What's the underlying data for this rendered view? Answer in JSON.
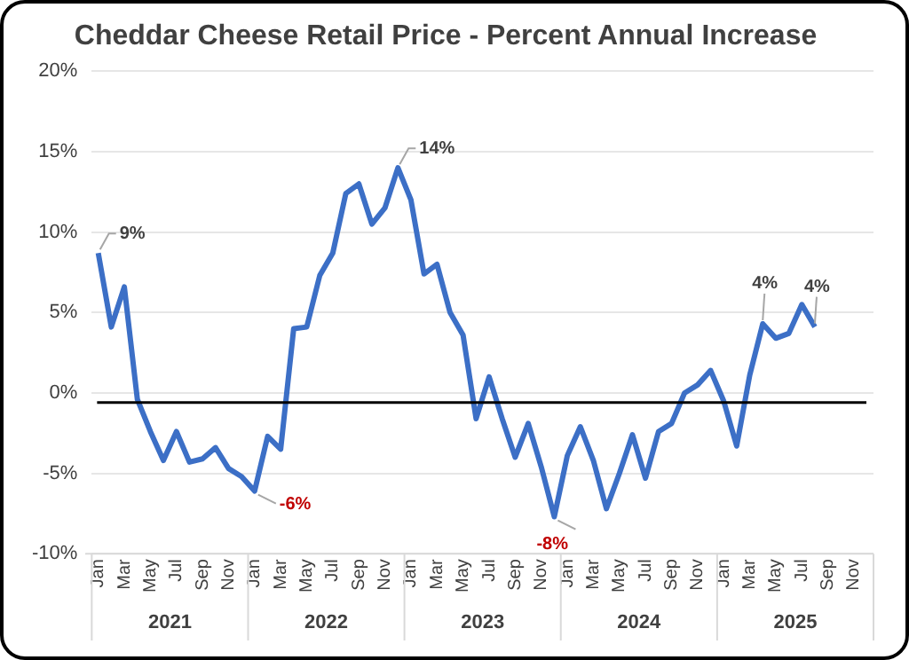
{
  "chart_data": {
    "type": "line",
    "title": "Cheddar Cheese Retail Price - Percent Annual Increase",
    "categories": [
      "Jan",
      null,
      "Mar",
      null,
      "May",
      null,
      "Jul",
      null,
      "Sep",
      null,
      "Nov",
      null,
      "Jan",
      null,
      "Mar",
      null,
      "May",
      null,
      "Jul",
      null,
      "Sep",
      null,
      "Nov",
      null,
      "Jan",
      null,
      "Mar",
      null,
      "May",
      null,
      "Jul",
      null,
      "Sep",
      null,
      "Nov",
      null,
      "Jan",
      null,
      "Mar",
      null,
      "May",
      null,
      "Jul",
      null,
      "Sep",
      null,
      "Nov",
      null,
      "Jan",
      null,
      "Mar",
      null,
      "May",
      null,
      "Jul",
      null,
      "Sep",
      null,
      "Nov",
      null
    ],
    "series": [
      {
        "color": "#3c6fc6",
        "values": [
          8.7,
          4.1,
          6.6,
          -0.4,
          -2.4,
          -4.2,
          -2.4,
          -4.3,
          -4.1,
          -3.4,
          -4.7,
          -5.2,
          -6.1,
          -2.7,
          -3.5,
          4.0,
          4.1,
          7.3,
          8.7,
          12.4,
          13.0,
          10.5,
          11.5,
          14.0,
          12.0,
          7.4,
          8.0,
          5.0,
          3.6,
          -1.6,
          1.0,
          -1.6,
          -4.0,
          -1.9,
          -4.6,
          -7.7,
          -3.9,
          -2.1,
          -4.2,
          -7.2,
          -5.0,
          -2.6,
          -5.3,
          -2.4,
          -1.9,
          0.0,
          0.5,
          1.4,
          -0.5,
          -3.3,
          1.1,
          4.3,
          3.4,
          3.7,
          5.5,
          4.1,
          null,
          null,
          null,
          null
        ],
        "value_labels": [
          "9%",
          null,
          null,
          null,
          null,
          null,
          null,
          null,
          null,
          null,
          null,
          null,
          "-6%",
          null,
          null,
          null,
          null,
          null,
          null,
          null,
          null,
          null,
          null,
          "14%",
          null,
          null,
          null,
          null,
          null,
          null,
          null,
          null,
          null,
          null,
          null,
          "-8%",
          null,
          null,
          null,
          null,
          null,
          null,
          null,
          null,
          null,
          null,
          null,
          null,
          null,
          null,
          null,
          "4%",
          null,
          null,
          null,
          "4%",
          null,
          null,
          null,
          null
        ]
      }
    ],
    "annotations": [
      "2021",
      "2022",
      "2023",
      "2024",
      "2025"
    ],
    "ylim": [
      -10,
      20
    ],
    "yticks": [
      {
        "value": -10,
        "label": "-10%"
      },
      {
        "value": -5,
        "label": "-5%"
      },
      {
        "value": 0,
        "label": "0%"
      },
      {
        "value": 5,
        "label": "5%"
      },
      {
        "value": 10,
        "label": "10%"
      },
      {
        "value": 15,
        "label": "15%"
      },
      {
        "value": 20,
        "label": "20%"
      }
    ],
    "ref_lines": [
      {
        "axis": "y",
        "value": -0.6,
        "color": "#000000"
      }
    ],
    "grid": "y",
    "legend": false,
    "marker": "none",
    "line_style": "solid"
  }
}
